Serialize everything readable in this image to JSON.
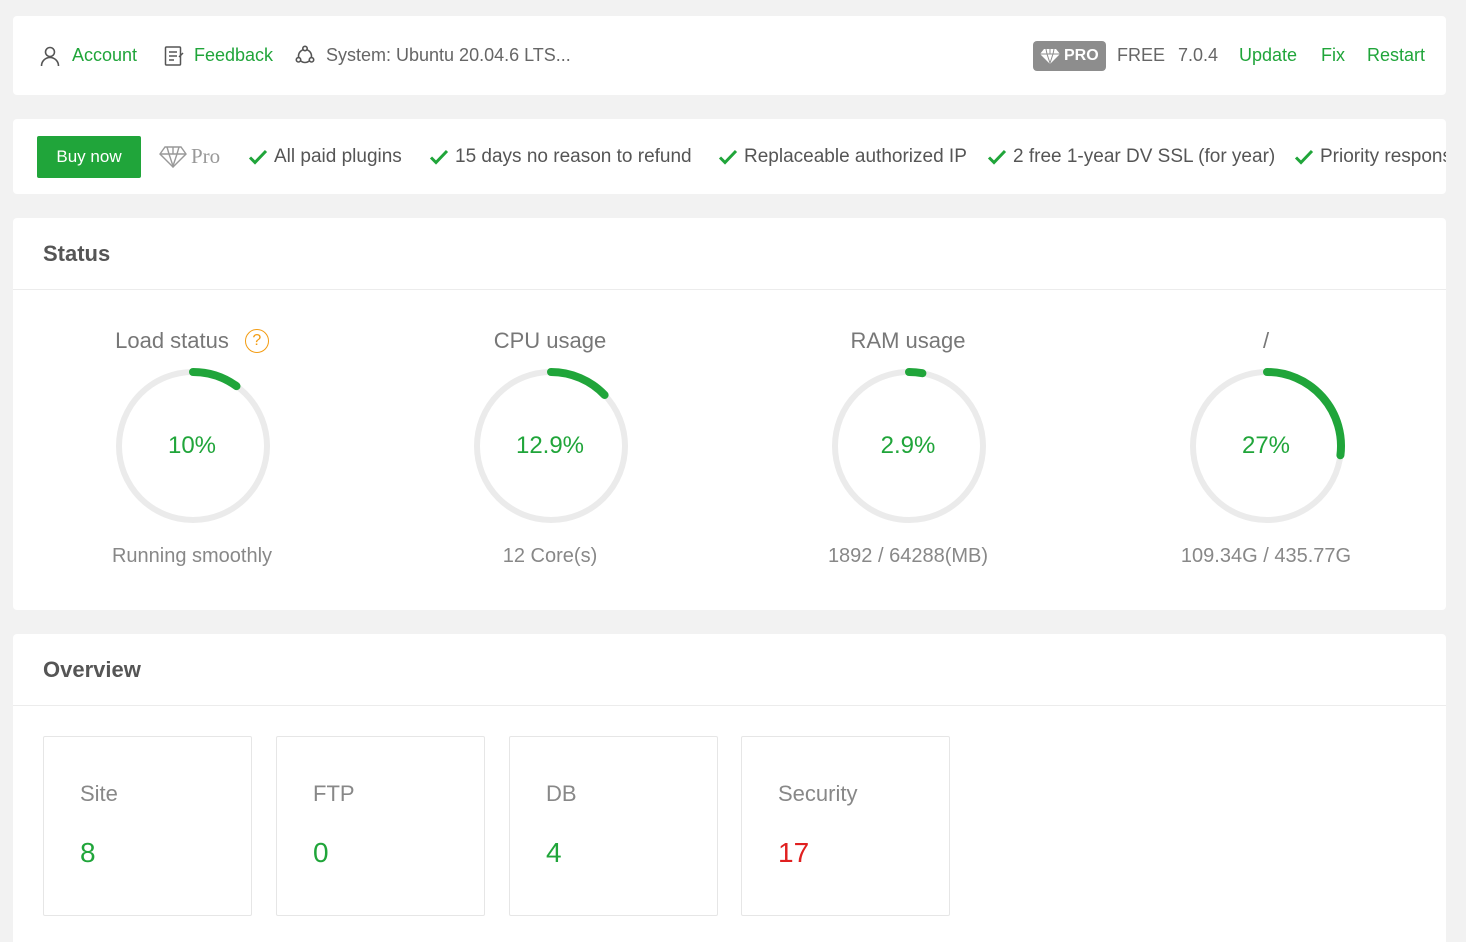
{
  "topbar": {
    "account": "Account",
    "feedback": "Feedback",
    "system": "System: Ubuntu 20.04.6 LTS...",
    "pro_badge": "PRO",
    "edition": "FREE",
    "version": "7.0.4",
    "update": "Update",
    "fix": "Fix",
    "restart": "Restart"
  },
  "promo": {
    "buy_button": "Buy now",
    "pro_label": "Pro",
    "features": [
      "All paid plugins",
      "15 days no reason to refund",
      "Replaceable authorized IP",
      "2 free 1-year DV SSL (for year)",
      "Priority response"
    ]
  },
  "status": {
    "title": "Status",
    "help_glyph": "?",
    "gauges": [
      {
        "title": "Load status",
        "value": "10%",
        "percent": 10,
        "subtitle": "Running smoothly"
      },
      {
        "title": "CPU usage",
        "value": "12.9%",
        "percent": 12.9,
        "subtitle": "12 Core(s)"
      },
      {
        "title": "RAM usage",
        "value": "2.9%",
        "percent": 2.9,
        "subtitle": "1892 / 64288(MB)"
      },
      {
        "title": "/",
        "value": "27%",
        "percent": 27,
        "subtitle": "109.34G / 435.77G"
      }
    ]
  },
  "overview": {
    "title": "Overview",
    "items": [
      {
        "label": "Site",
        "value": "8"
      },
      {
        "label": "FTP",
        "value": "0"
      },
      {
        "label": "DB",
        "value": "4"
      },
      {
        "label": "Security",
        "value": "17",
        "alert": true
      }
    ]
  },
  "colors": {
    "accent": "#20a53a",
    "alert": "#e02020",
    "track": "#ebebeb",
    "help": "#f39c12"
  }
}
